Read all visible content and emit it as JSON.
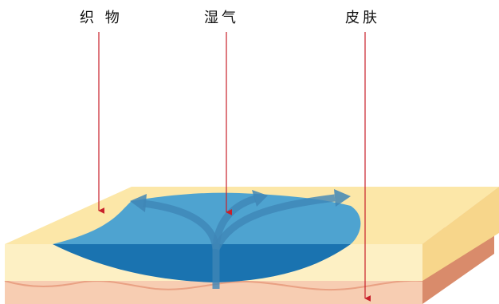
{
  "labels": {
    "fabric": "织 物",
    "moisture": "湿气",
    "skin": "皮肤"
  },
  "colors": {
    "fabric_top": "#FCE7A8",
    "fabric_front": "#FDF0C4",
    "fabric_right": "#F7D68B",
    "skin_top": "#F2B899",
    "skin_front": "#F7CDB2",
    "skin_right": "#D98B6B",
    "moisture_light": "#4EA3D0",
    "moisture_dark": "#1A73B0",
    "arrow": "#3F86B6",
    "pointer": "#C8202A"
  }
}
